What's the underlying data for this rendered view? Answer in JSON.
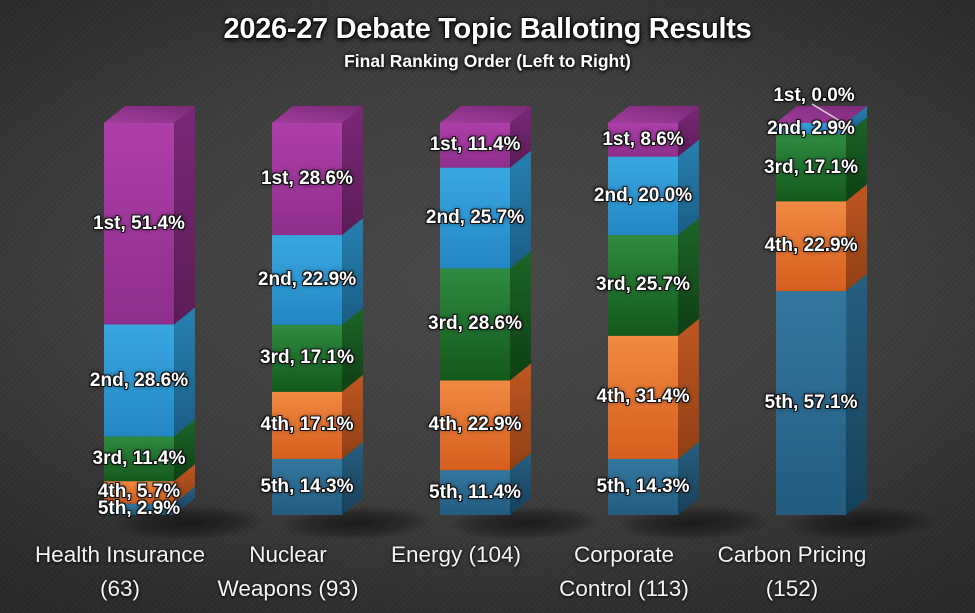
{
  "title": "2026-27 Debate Topic Balloting Results",
  "subtitle": "Final Ranking Order (Left to Right)",
  "background_color": "#3d3d3d",
  "text_color": "#ffffff",
  "chart_data": {
    "type": "bar",
    "variant": "3d-stacked-column",
    "stacking": "percent",
    "title": "2026-27 Debate Topic Balloting Results",
    "subtitle": "Final Ranking Order (Left to Right)",
    "legend": "none",
    "gridlines": false,
    "axes_visible": false,
    "ylim": [
      0,
      100
    ],
    "data_label_format": "{series}, {value}%",
    "categories": [
      "Health Insurance (63)",
      "Nuclear Weapons (93)",
      "Energy (104)",
      "Corporate Control (113)",
      "Carbon Pricing (152)"
    ],
    "series": [
      {
        "name": "1st",
        "values": [
          51.4,
          28.6,
          11.4,
          8.6,
          0.0
        ],
        "shades": {
          "front_top": "#ad3fa9",
          "front_bottom": "#8e2e8b",
          "side_top": "#7b2877",
          "side_bottom": "#5a1c57",
          "top_front": "#a13d9d",
          "top_back": "#7c2a78"
        }
      },
      {
        "name": "2nd",
        "values": [
          28.6,
          22.9,
          25.7,
          20.0,
          2.9
        ],
        "shades": {
          "front_top": "#3aa7e0",
          "front_bottom": "#2287c3",
          "side_top": "#2780b2",
          "side_bottom": "#1a5e86",
          "top_front": "#2f9ad3",
          "top_back": "#1f6f9e"
        }
      },
      {
        "name": "3rd",
        "values": [
          11.4,
          17.1,
          28.6,
          25.7,
          17.1
        ],
        "shades": {
          "front_top": "#2e8b40",
          "front_bottom": "#14581c",
          "side_top": "#1c6527",
          "side_bottom": "#0e3f13",
          "top_front": "#27803a",
          "top_back": "#155a1f"
        }
      },
      {
        "name": "4th",
        "values": [
          5.7,
          17.1,
          22.9,
          31.4,
          22.9
        ],
        "shades": {
          "front_top": "#f18a42",
          "front_bottom": "#d55e1e",
          "side_top": "#c05722",
          "side_bottom": "#8f3f14",
          "top_front": "#e8732a",
          "top_back": "#b5531d"
        }
      },
      {
        "name": "5th",
        "values": [
          2.9,
          14.3,
          11.4,
          14.3,
          57.1
        ],
        "shades": {
          "front_top": "#33779f",
          "front_bottom": "#235c7f",
          "side_top": "#275f80",
          "side_bottom": "#16405a",
          "top_front": "#2d6a90",
          "top_back": "#1c4a68"
        }
      }
    ],
    "callout": {
      "series": "1st",
      "category": "Carbon Pricing (152)",
      "value": 0.0,
      "placement": "above-bar-with-leader-line"
    }
  }
}
